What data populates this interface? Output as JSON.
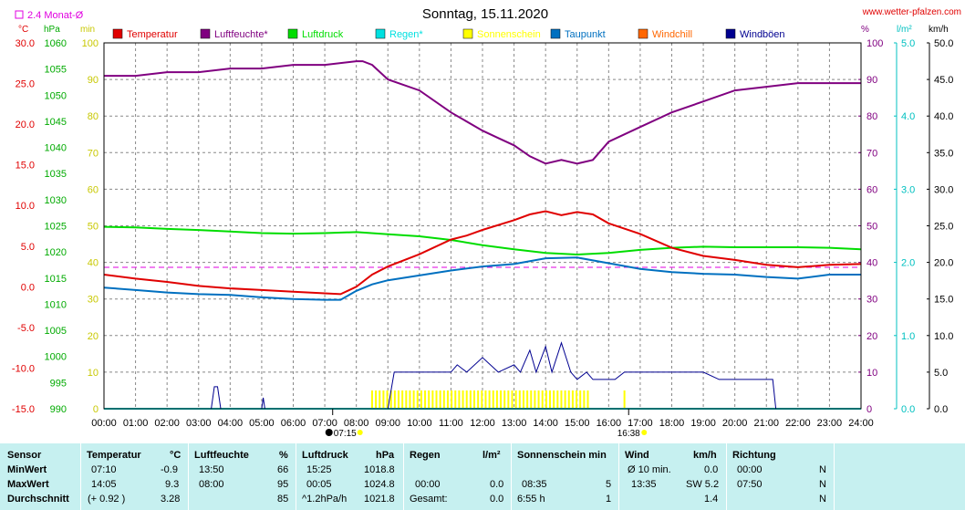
{
  "header": {
    "title": "Sonntag, 15.11.2020",
    "site": "www.wetter-pfalzen.com",
    "avg_label": "2.4 Monat-Ø",
    "unit_temp": "°C",
    "unit_hpa": "hPa",
    "unit_min": "min",
    "unit_pct": "%",
    "unit_rain": "l/m²",
    "unit_wind": "km/h"
  },
  "colors": {
    "temperature": "#e00000",
    "humidity": "#800080",
    "pressure": "#00dd00",
    "rain": "#00e0e0",
    "sunshine": "#ffff00",
    "dewpoint": "#0070c0",
    "windchill": "#ff6600",
    "gusts": "#000090",
    "avg_line": "#e000e0",
    "stats_bg": "#c6f0f0"
  },
  "legend": [
    {
      "label": "Temperatur",
      "color": "#e00000"
    },
    {
      "label": "Luftfeuchte*",
      "color": "#800080"
    },
    {
      "label": "Luftdruck",
      "color": "#00dd00"
    },
    {
      "label": "Regen*",
      "color": "#00e0e0"
    },
    {
      "label": "Sonnenschein",
      "color": "#ffff00"
    },
    {
      "label": "Taupunkt",
      "color": "#0070c0"
    },
    {
      "label": "Windchill",
      "color": "#ff6600"
    },
    {
      "label": "Windböen",
      "color": "#000090"
    }
  ],
  "chart_data": {
    "type": "line",
    "title": "Sonntag, 15.11.2020",
    "x_ticks": [
      "00:00",
      "01:00",
      "02:00",
      "03:00",
      "04:00",
      "05:00",
      "06:00",
      "07:00",
      "08:00",
      "09:00",
      "10:00",
      "11:00",
      "12:00",
      "13:00",
      "14:00",
      "15:00",
      "16:00",
      "17:00",
      "18:00",
      "19:00",
      "20:00",
      "21:00",
      "22:00",
      "23:00",
      "24:00"
    ],
    "xlim": [
      0,
      24
    ],
    "axes": {
      "temp": {
        "unit": "°C",
        "ylim": [
          -15,
          30
        ],
        "ticks": [
          "30.0",
          "25.0",
          "20.0",
          "15.0",
          "10.0",
          "5.0",
          "0.0",
          "-5.0",
          "-10.0",
          "-15.0"
        ]
      },
      "pressure": {
        "unit": "hPa",
        "ylim": [
          990,
          1060
        ],
        "ticks": [
          "1060",
          "1055",
          "1050",
          "1045",
          "1040",
          "1035",
          "1030",
          "1025",
          "1020",
          "1015",
          "1010",
          "1005",
          "1000",
          "995",
          "990"
        ]
      },
      "minutes": {
        "unit": "min",
        "ylim": [
          0,
          100
        ],
        "ticks": [
          "100",
          "90",
          "80",
          "70",
          "60",
          "50",
          "40",
          "30",
          "20",
          "10",
          "0"
        ]
      },
      "humidity": {
        "unit": "%",
        "ylim": [
          0,
          100
        ],
        "ticks": [
          "100",
          "90",
          "80",
          "70",
          "60",
          "50",
          "40",
          "30",
          "20",
          "10",
          "0"
        ]
      },
      "rain": {
        "unit": "l/m²",
        "ylim": [
          0,
          5
        ],
        "ticks": [
          "5.0",
          "4.0",
          "3.0",
          "2.0",
          "1.0",
          "0.0"
        ]
      },
      "wind": {
        "unit": "km/h",
        "ylim": [
          0,
          50
        ],
        "ticks": [
          "50.0",
          "45.0",
          "40.0",
          "35.0",
          "30.0",
          "25.0",
          "20.0",
          "15.0",
          "10.0",
          "5.0",
          "0.0"
        ]
      }
    },
    "avg_temp": 2.4,
    "series": [
      {
        "name": "Temperatur",
        "axis": "temp",
        "x": [
          0,
          1,
          2,
          3,
          4,
          5,
          6,
          7,
          7.5,
          8,
          8.5,
          9,
          10,
          11,
          11.5,
          12,
          13,
          13.5,
          14,
          14.5,
          15,
          15.5,
          16,
          17,
          18,
          19,
          20,
          21,
          22,
          23,
          24
        ],
        "y": [
          1.5,
          1.0,
          0.6,
          0.1,
          -0.2,
          -0.4,
          -0.6,
          -0.8,
          -0.9,
          0.0,
          1.5,
          2.5,
          4.0,
          5.8,
          6.3,
          7.0,
          8.2,
          8.9,
          9.3,
          8.8,
          9.2,
          8.9,
          7.8,
          6.5,
          4.8,
          3.8,
          3.3,
          2.7,
          2.4,
          2.7,
          2.8
        ]
      },
      {
        "name": "Luftfeuchte*",
        "axis": "humidity",
        "x": [
          0,
          1,
          2,
          3,
          4,
          5,
          6,
          7,
          8,
          8.2,
          8.5,
          9,
          10,
          11,
          12,
          12.5,
          13,
          13.5,
          14,
          14.5,
          15,
          15.5,
          16,
          17,
          18,
          19,
          20,
          21,
          22,
          23,
          24
        ],
        "y": [
          91,
          91,
          92,
          92,
          93,
          93,
          94,
          94,
          95,
          95,
          94,
          90,
          87,
          81,
          76,
          74,
          72,
          69,
          67,
          68,
          67,
          68,
          73,
          77,
          81,
          84,
          87,
          88,
          89,
          89,
          89
        ]
      },
      {
        "name": "Luftdruck",
        "axis": "pressure",
        "x": [
          0,
          1,
          2,
          3,
          4,
          5,
          6,
          7,
          8,
          9,
          10,
          11,
          12,
          13,
          14,
          15,
          16,
          17,
          18,
          19,
          20,
          21,
          22,
          23,
          24
        ],
        "y": [
          1024.8,
          1024.7,
          1024.4,
          1024.2,
          1023.9,
          1023.6,
          1023.5,
          1023.6,
          1023.8,
          1023.4,
          1023.0,
          1022.3,
          1021.3,
          1020.5,
          1019.8,
          1019.5,
          1019.8,
          1020.4,
          1020.8,
          1021.0,
          1020.9,
          1020.9,
          1020.9,
          1020.8,
          1020.5
        ]
      },
      {
        "name": "Taupunkt",
        "axis": "temp",
        "x": [
          0,
          1,
          2,
          3,
          4,
          5,
          6,
          7,
          7.5,
          8,
          8.5,
          9,
          10,
          11,
          12,
          13,
          14,
          15,
          16,
          17,
          18,
          19,
          20,
          21,
          22,
          23,
          24
        ],
        "y": [
          -0.1,
          -0.4,
          -0.7,
          -0.9,
          -1.0,
          -1.3,
          -1.5,
          -1.6,
          -1.6,
          -0.5,
          0.3,
          0.8,
          1.4,
          2.0,
          2.5,
          2.8,
          3.5,
          3.6,
          2.9,
          2.2,
          1.8,
          1.6,
          1.5,
          1.2,
          1.0,
          1.5,
          1.5
        ]
      },
      {
        "name": "Windböen",
        "axis": "wind",
        "x": [
          0,
          3.4,
          3.5,
          3.6,
          3.7,
          3.9,
          5.0,
          5.05,
          5.1,
          8.9,
          9.0,
          9.2,
          11,
          11.2,
          11.5,
          12,
          12.5,
          13,
          13.2,
          13.5,
          13.7,
          14,
          14.2,
          14.5,
          14.8,
          15,
          15.3,
          15.5,
          16,
          16.2,
          16.5,
          17,
          18,
          18.5,
          19,
          19.5,
          20,
          20.5,
          21,
          21.2,
          21.3,
          24
        ],
        "y": [
          0,
          0,
          3,
          3,
          0,
          0,
          0,
          1.5,
          0,
          0,
          0,
          5,
          5,
          6,
          5,
          7,
          5,
          6,
          5,
          8,
          5,
          8.5,
          5,
          9,
          5,
          4,
          5,
          4,
          4,
          4,
          5,
          5,
          5,
          5,
          5,
          4,
          4,
          4,
          4,
          4,
          0,
          0
        ]
      },
      {
        "name": "Regen*",
        "axis": "rain",
        "x": [
          0,
          24
        ],
        "y": [
          0,
          0
        ]
      }
    ],
    "sunshine_blocks": [
      [
        8.5,
        15.35
      ],
      [
        16.5,
        16.6
      ]
    ],
    "sunrise": "07:15",
    "sunset": "16:38"
  },
  "stats": {
    "headers": {
      "sensor": "Sensor",
      "temp": "Temperatur",
      "temp_u": "°C",
      "hum": "Luftfeuchte",
      "hum_u": "%",
      "press": "Luftdruck",
      "press_u": "hPa",
      "rain": "Regen",
      "rain_u": "l/m²",
      "sun": "Sonnenschein min",
      "wind": "Wind",
      "wind_u": "km/h",
      "dir": "Richtung"
    },
    "rows": [
      {
        "label": "MinWert",
        "t_time": "07:10",
        "t_val": "-0.9",
        "h_time": "13:50",
        "h_val": "66",
        "p_time": "15:25",
        "p_val": "1018.8",
        "r_time": "",
        "r_val": "",
        "s_time": "",
        "s_val": "",
        "w_time": "Ø 10 min.",
        "w_val": "0.0",
        "d_time": "00:00",
        "d_val": "N"
      },
      {
        "label": "MaxWert",
        "t_time": "14:05",
        "t_val": "9.3",
        "h_time": "08:00",
        "h_val": "95",
        "p_time": "00:05",
        "p_val": "1024.8",
        "r_time": "00:00",
        "r_val": "0.0",
        "s_time": "08:35",
        "s_val": "5",
        "w_time": "13:35",
        "w_val": "SW 5.2",
        "d_time": "07:50",
        "d_val": "N"
      },
      {
        "label": "Durchschnitt",
        "t_time": "(+ 0.92 )",
        "t_val": "3.28",
        "h_time": "",
        "h_val": "85",
        "p_time": "^1.2hPa/h",
        "p_val": "1021.8",
        "r_time": "Gesamt:",
        "r_val": "0.0",
        "s_time": "6:55 h",
        "s_val": "1",
        "w_time": "",
        "w_val": "1.4",
        "d_time": "",
        "d_val": "N"
      }
    ]
  }
}
